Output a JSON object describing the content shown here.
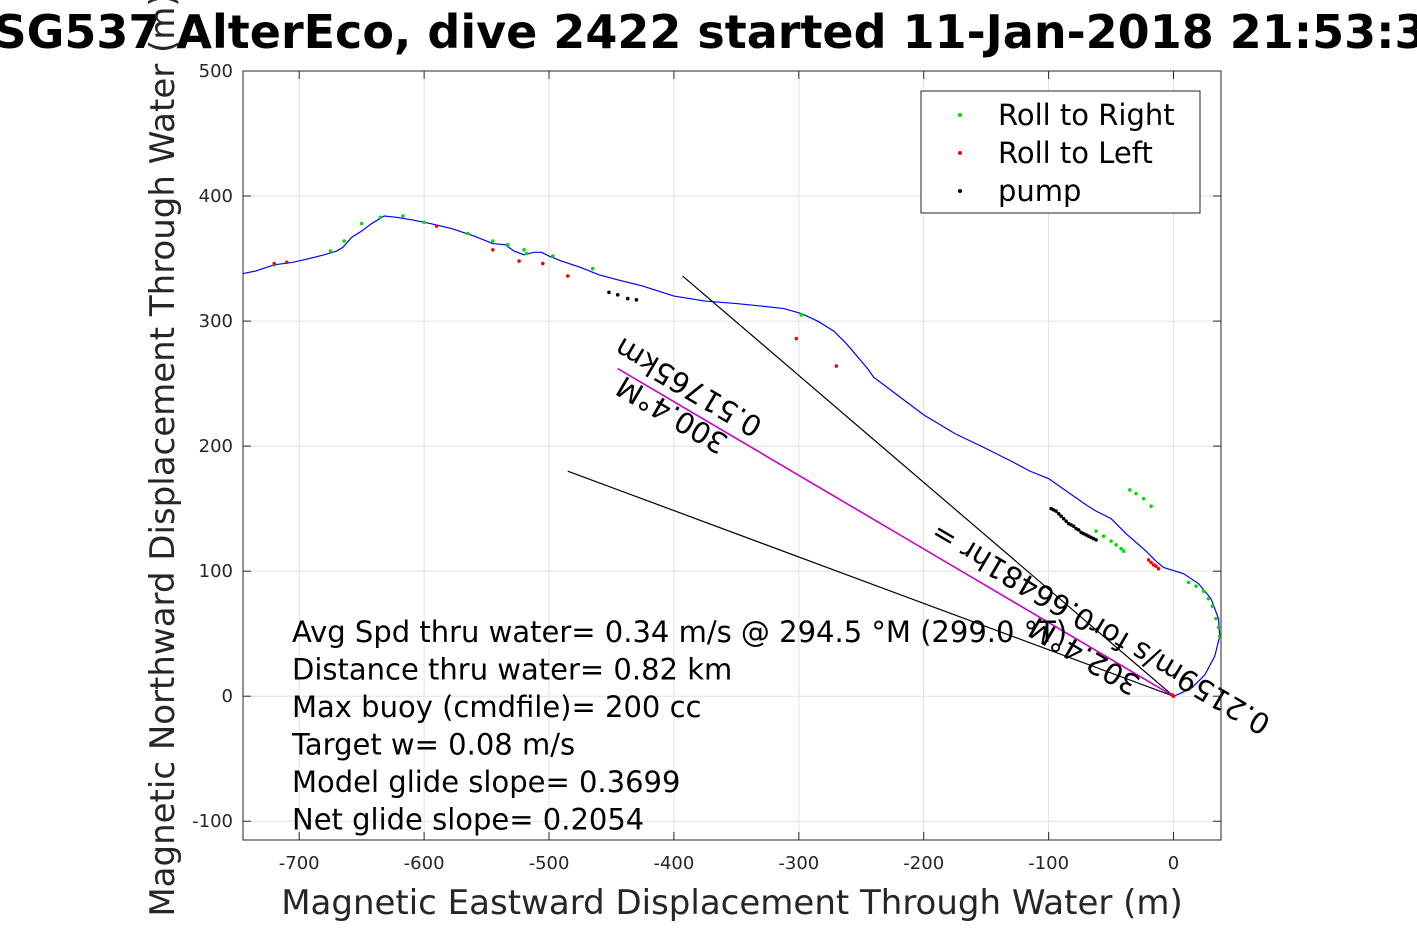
{
  "chart_data": {
    "type": "line",
    "title": "SG537 AlterEco, dive 2422 started 11-Jan-2018 21:53:3",
    "xlabel": "Magnetic Eastward Displacement Through Water (m)",
    "ylabel": "Magnetic Northward Displacement Through Water (m)",
    "xlim": [
      -745,
      38
    ],
    "ylim": [
      -115,
      500
    ],
    "xticks": [
      -700,
      -600,
      -500,
      -400,
      -300,
      -200,
      -100,
      0
    ],
    "yticks": [
      -100,
      0,
      100,
      200,
      300,
      400,
      500
    ],
    "grid": true,
    "legend_position": "top-right",
    "series": [
      {
        "name": "track",
        "color": "#0000ff",
        "points": [
          [
            0,
            0
          ],
          [
            5,
            2
          ],
          [
            15,
            7
          ],
          [
            25,
            17
          ],
          [
            33,
            32
          ],
          [
            37,
            48
          ],
          [
            36,
            62
          ],
          [
            30,
            78
          ],
          [
            20,
            90
          ],
          [
            8,
            98
          ],
          [
            -8,
            103
          ],
          [
            -14,
            108
          ],
          [
            -22,
            116
          ],
          [
            -38,
            130
          ],
          [
            -50,
            142
          ],
          [
            -62,
            148
          ],
          [
            -70,
            153
          ],
          [
            -80,
            160
          ],
          [
            -90,
            167
          ],
          [
            -100,
            174
          ],
          [
            -115,
            180
          ],
          [
            -130,
            188
          ],
          [
            -150,
            198
          ],
          [
            -175,
            210
          ],
          [
            -200,
            225
          ],
          [
            -220,
            240
          ],
          [
            -240,
            255
          ],
          [
            -245,
            262
          ],
          [
            -250,
            268
          ],
          [
            -262,
            282
          ],
          [
            -272,
            292
          ],
          [
            -285,
            300
          ],
          [
            -298,
            306
          ],
          [
            -312,
            310
          ],
          [
            -330,
            312
          ],
          [
            -350,
            314
          ],
          [
            -375,
            316
          ],
          [
            -400,
            320
          ],
          [
            -425,
            328
          ],
          [
            -445,
            333
          ],
          [
            -460,
            337
          ],
          [
            -475,
            343
          ],
          [
            -490,
            348
          ],
          [
            -500,
            352
          ],
          [
            -506,
            355
          ],
          [
            -512,
            355
          ],
          [
            -520,
            353
          ],
          [
            -528,
            356
          ],
          [
            -535,
            361
          ],
          [
            -545,
            362
          ],
          [
            -560,
            368
          ],
          [
            -578,
            374
          ],
          [
            -595,
            378
          ],
          [
            -610,
            381
          ],
          [
            -622,
            383
          ],
          [
            -632,
            384
          ],
          [
            -642,
            378
          ],
          [
            -650,
            372
          ],
          [
            -658,
            367
          ],
          [
            -665,
            359
          ],
          [
            -670,
            356
          ],
          [
            -680,
            353
          ],
          [
            -692,
            350
          ],
          [
            -705,
            347
          ],
          [
            -720,
            345
          ],
          [
            -735,
            340
          ],
          [
            -745,
            338
          ]
        ]
      },
      {
        "name": "Roll to Right",
        "color": "#00dd00",
        "points": [
          [
            37,
            48
          ],
          [
            36,
            55
          ],
          [
            34,
            62
          ],
          [
            31,
            72
          ],
          [
            28,
            78
          ],
          [
            24,
            84
          ],
          [
            18,
            88
          ],
          [
            12,
            91
          ],
          [
            -40,
            116
          ],
          [
            -42,
            118
          ],
          [
            -46,
            121
          ],
          [
            -50,
            124
          ],
          [
            -56,
            128
          ],
          [
            -62,
            132
          ],
          [
            -18,
            152
          ],
          [
            -24,
            158
          ],
          [
            -30,
            162
          ],
          [
            -35,
            165
          ],
          [
            -298,
            305
          ],
          [
            -465,
            342
          ],
          [
            -497,
            352
          ],
          [
            -518,
            354
          ],
          [
            -520,
            357
          ],
          [
            -533,
            361
          ],
          [
            -545,
            364
          ],
          [
            -565,
            370
          ],
          [
            -600,
            379
          ],
          [
            -617,
            384
          ],
          [
            -635,
            383
          ],
          [
            -650,
            378
          ],
          [
            -664,
            364
          ],
          [
            -675,
            356
          ],
          [
            -720,
            345
          ]
        ]
      },
      {
        "name": "Roll to Left",
        "color": "#ff0000",
        "points": [
          [
            0,
            0
          ],
          [
            -1,
            1
          ],
          [
            -12,
            102
          ],
          [
            -14,
            104
          ],
          [
            -16,
            105
          ],
          [
            -18,
            107
          ],
          [
            -20,
            109
          ],
          [
            -302,
            286
          ],
          [
            -270,
            264
          ],
          [
            -485,
            336
          ],
          [
            -505,
            346
          ],
          [
            -524,
            348
          ],
          [
            -545,
            357
          ],
          [
            -590,
            376
          ],
          [
            -710,
            347
          ],
          [
            -720,
            346
          ]
        ]
      },
      {
        "name": "pump",
        "color": "#000000",
        "points": [
          [
            -98,
            150
          ],
          [
            -96,
            149
          ],
          [
            -94,
            148
          ],
          [
            -92,
            146
          ],
          [
            -90,
            144
          ],
          [
            -88,
            142
          ],
          [
            -86,
            140
          ],
          [
            -84,
            138
          ],
          [
            -82,
            137
          ],
          [
            -80,
            136
          ],
          [
            -78,
            134
          ],
          [
            -76,
            133
          ],
          [
            -74,
            131
          ],
          [
            -72,
            130
          ],
          [
            -70,
            129
          ],
          [
            -68,
            128
          ],
          [
            -66,
            127
          ],
          [
            -64,
            126
          ],
          [
            -62,
            125
          ],
          [
            -430,
            317
          ],
          [
            -437,
            318
          ],
          [
            -445,
            321
          ],
          [
            -452,
            323
          ]
        ]
      }
    ],
    "reference_lines": [
      {
        "name": "black line 1",
        "color": "#000000",
        "points": [
          [
            0,
            0
          ],
          [
            -393,
            336
          ]
        ]
      },
      {
        "name": "black line 2",
        "color": "#000000",
        "points": [
          [
            0,
            0
          ],
          [
            -485,
            180
          ]
        ]
      },
      {
        "name": "magenta line",
        "color": "#cc00cc",
        "points": [
          [
            0,
            0
          ],
          [
            -445,
            262
          ]
        ]
      }
    ],
    "rotated_labels": [
      {
        "line1": "300.4°M",
        "line2": "0.51765km",
        "anchor": [
          -395,
          236
        ],
        "angle": 30.5
      },
      {
        "line1": "302.4°M",
        "line2": "0.2159m/s for0.66481hr =",
        "anchor": [
          -65,
          43
        ],
        "angle": 30.5
      }
    ],
    "legend": [
      "Roll to Right",
      "Roll to Left",
      "pump"
    ],
    "annotations": [
      "Avg Spd thru water=  0.34 m/s @ 294.5 °M (299.0 °T)",
      "Distance thru water=  0.82 km",
      "Max buoy (cmdfile)= 200 cc",
      "Target w= 0.08 m/s",
      "Model glide slope= 0.3699",
      "Net glide slope= 0.2054"
    ]
  }
}
